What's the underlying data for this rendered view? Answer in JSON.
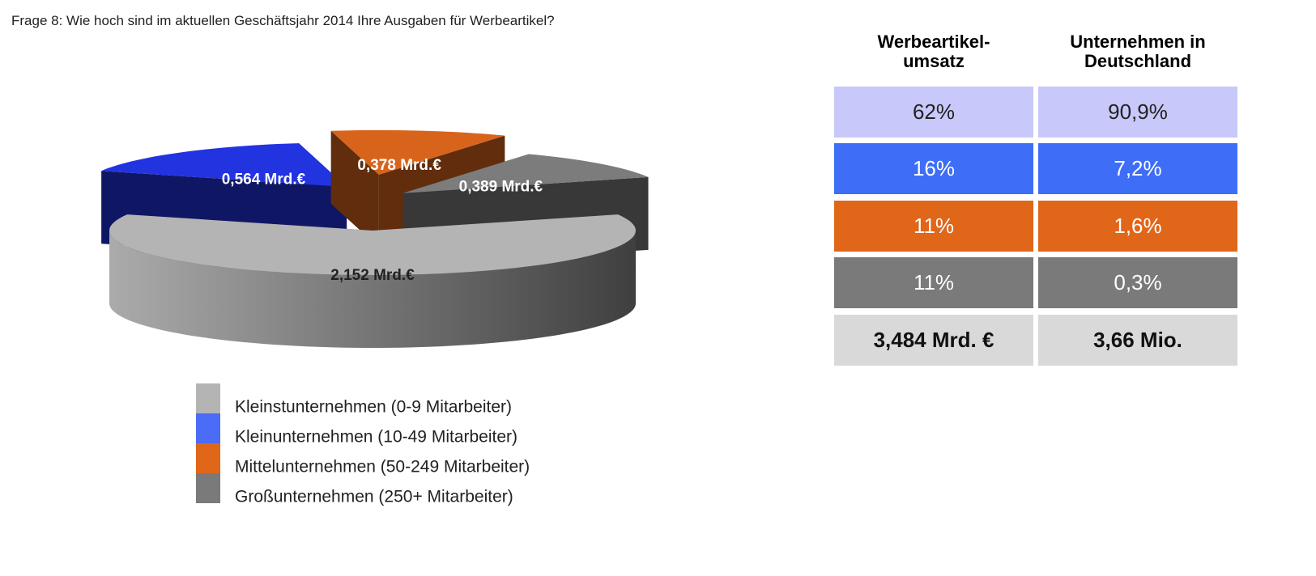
{
  "title": "Frage 8: Wie hoch sind im aktuellen Geschäftsjahr 2014 Ihre Ausgaben für Werbeartikel?",
  "chart_data": {
    "type": "pie",
    "categories": [
      "Kleinstunternehmen (0-9 Mitarbeiter)",
      "Kleinunternehmen (10-49 Mitarbeiter)",
      "Mittelunternehmen (50-249 Mitarbeiter)",
      "Großunternehmen (250+ Mitarbeiter)"
    ],
    "values": [
      2.152,
      0.564,
      0.378,
      0.389
    ],
    "value_labels": [
      "2,152 Mrd.€",
      "0,564 Mrd.€",
      "0,378 Mrd.€",
      "0,389 Mrd.€"
    ],
    "colors": [
      "#b4b4b4",
      "#2233e0",
      "#d8641c",
      "#7c7c7c"
    ],
    "legend_colors": [
      "#b4b4b4",
      "#4a6cf7",
      "#e0661a",
      "#7a7a7a"
    ]
  },
  "table": {
    "headers": [
      [
        "Werbeartikel-",
        "umsatz"
      ],
      [
        "Unternehmen in",
        "Deutschland"
      ]
    ],
    "rows": [
      [
        "62%",
        "90,9%"
      ],
      [
        "16%",
        "7,2%"
      ],
      [
        "11%",
        "1,6%"
      ],
      [
        "11%",
        "0,3%"
      ],
      [
        "3,484 Mrd. €",
        "3,66 Mio."
      ]
    ]
  }
}
